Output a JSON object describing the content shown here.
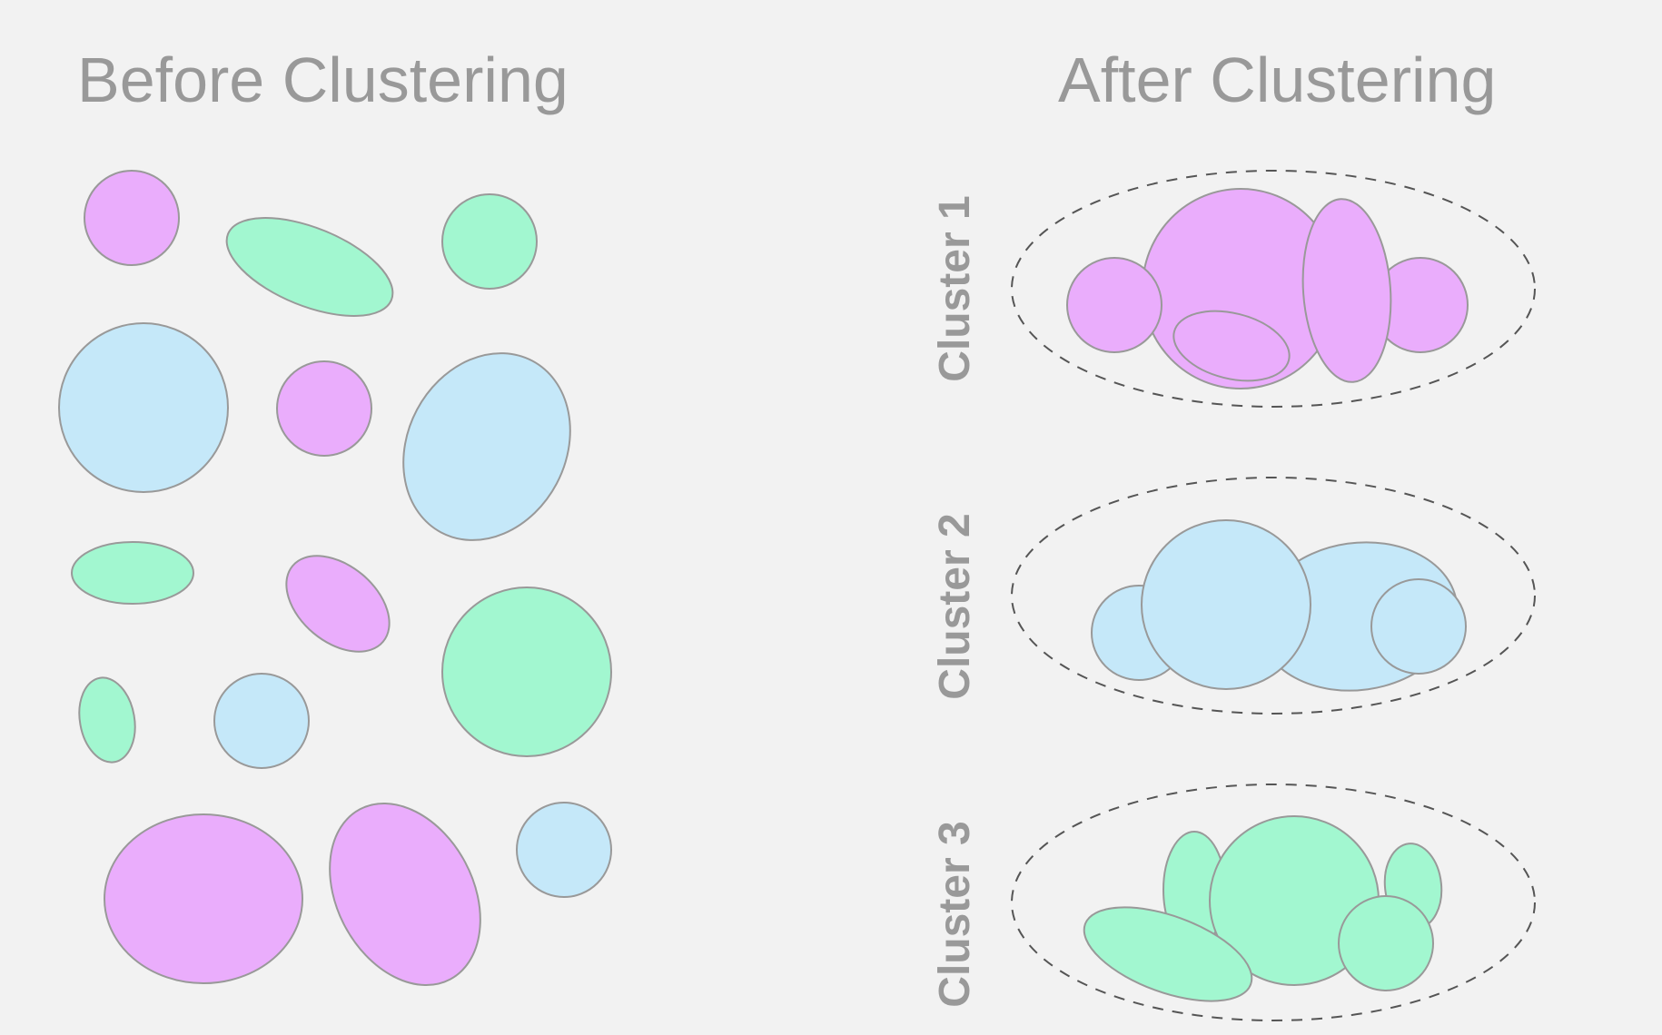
{
  "colors": {
    "background": "#f2f2f2",
    "pink": "#eaadfc",
    "green": "#a2f7d0",
    "blue": "#c5e8f9",
    "outline": "#999999",
    "text": "#999999"
  },
  "titles": {
    "before": "Before Clustering",
    "after": "After Clustering"
  },
  "clusters": [
    {
      "label": "Cluster 1",
      "color": "pink"
    },
    {
      "label": "Cluster 2",
      "color": "blue"
    },
    {
      "label": "Cluster 3",
      "color": "green"
    }
  ],
  "before_items": [
    {
      "color": "pink"
    },
    {
      "color": "green"
    },
    {
      "color": "green"
    },
    {
      "color": "blue"
    },
    {
      "color": "pink"
    },
    {
      "color": "blue"
    },
    {
      "color": "green"
    },
    {
      "color": "pink"
    },
    {
      "color": "green"
    },
    {
      "color": "green"
    },
    {
      "color": "blue"
    },
    {
      "color": "pink"
    },
    {
      "color": "pink"
    },
    {
      "color": "blue"
    }
  ]
}
